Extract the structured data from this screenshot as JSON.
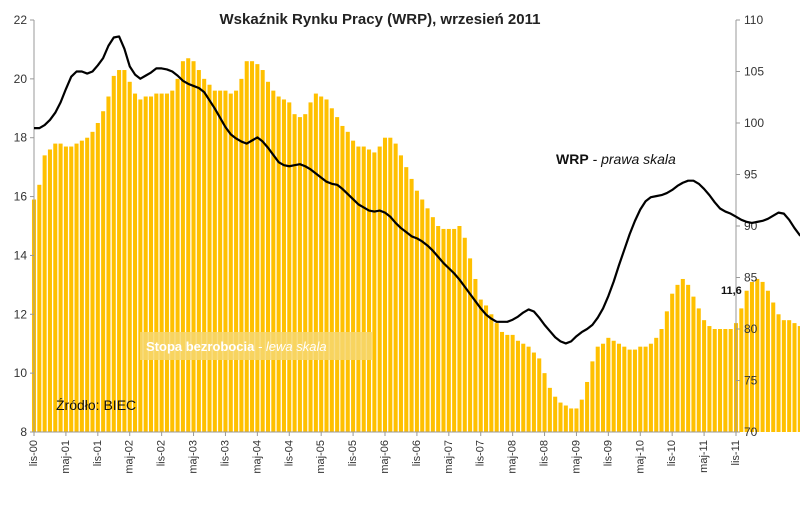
{
  "chart_data": {
    "type": "bar+line",
    "title": "Wskaźnik Rynku Pracy (WRP), wrzesień 2011",
    "left_axis": {
      "min": 8,
      "max": 22,
      "ticks": [
        "8",
        "10",
        "12",
        "14",
        "16",
        "18",
        "20",
        "22"
      ]
    },
    "right_axis": {
      "min": 70,
      "max": 110,
      "ticks": [
        "70",
        "75",
        "80",
        "85",
        "90",
        "95",
        "100",
        "105",
        "110"
      ]
    },
    "x_range": {
      "start": "2000-11",
      "end": "2011-11"
    },
    "x_ticks": [
      {
        "date": "2000-11",
        "label": "lis-00"
      },
      {
        "date": "2001-05",
        "label": "maj-01"
      },
      {
        "date": "2001-11",
        "label": "lis-01"
      },
      {
        "date": "2002-05",
        "label": "maj-02"
      },
      {
        "date": "2002-11",
        "label": "lis-02"
      },
      {
        "date": "2003-05",
        "label": "maj-03"
      },
      {
        "date": "2003-11",
        "label": "lis-03"
      },
      {
        "date": "2004-05",
        "label": "maj-04"
      },
      {
        "date": "2004-11",
        "label": "lis-04"
      },
      {
        "date": "2005-05",
        "label": "maj-05"
      },
      {
        "date": "2005-11",
        "label": "lis-05"
      },
      {
        "date": "2006-05",
        "label": "maj-06"
      },
      {
        "date": "2006-11",
        "label": "lis-06"
      },
      {
        "date": "2007-05",
        "label": "maj-07"
      },
      {
        "date": "2007-11",
        "label": "lis-07"
      },
      {
        "date": "2008-05",
        "label": "maj-08"
      },
      {
        "date": "2008-11",
        "label": "lis-08"
      },
      {
        "date": "2009-05",
        "label": "maj-09"
      },
      {
        "date": "2009-11",
        "label": "lis-09"
      },
      {
        "date": "2010-05",
        "label": "maj-10"
      },
      {
        "date": "2010-11",
        "label": "lis-10"
      },
      {
        "date": "2011-05",
        "label": "maj-11"
      },
      {
        "date": "2011-11",
        "label": "lis-11"
      }
    ],
    "bar_series": {
      "name": "Stopa bezrobocia",
      "axis": "left",
      "color": "#FFC000",
      "start": "2000-11",
      "values": [
        15.9,
        16.4,
        17.4,
        17.6,
        17.8,
        17.8,
        17.7,
        17.7,
        17.8,
        17.9,
        18.0,
        18.2,
        18.5,
        18.9,
        19.4,
        20.1,
        20.3,
        20.3,
        19.9,
        19.5,
        19.3,
        19.4,
        19.4,
        19.5,
        19.5,
        19.5,
        19.6,
        20.0,
        20.6,
        20.7,
        20.6,
        20.3,
        20.0,
        19.8,
        19.6,
        19.6,
        19.6,
        19.5,
        19.6,
        20.0,
        20.6,
        20.6,
        20.5,
        20.3,
        19.9,
        19.6,
        19.4,
        19.3,
        19.2,
        18.8,
        18.7,
        18.8,
        19.2,
        19.5,
        19.4,
        19.3,
        19.0,
        18.7,
        18.4,
        18.2,
        17.9,
        17.7,
        17.7,
        17.6,
        17.5,
        17.7,
        18.0,
        18.0,
        17.8,
        17.4,
        17.0,
        16.6,
        16.2,
        15.9,
        15.6,
        15.3,
        15.0,
        14.9,
        14.9,
        14.9,
        15.0,
        14.6,
        13.9,
        13.2,
        12.5,
        12.3,
        12.0,
        11.7,
        11.4,
        11.3,
        11.3,
        11.1,
        11.0,
        10.9,
        10.7,
        10.5,
        10.0,
        9.5,
        9.2,
        9.0,
        8.9,
        8.8,
        8.8,
        9.1,
        9.7,
        10.4,
        10.9,
        11.0,
        11.2,
        11.1,
        11.0,
        10.9,
        10.8,
        10.8,
        10.9,
        10.9,
        11.0,
        11.2,
        11.5,
        12.1,
        12.7,
        13.0,
        13.2,
        13.0,
        12.6,
        12.2,
        11.8,
        11.6,
        11.5,
        11.5,
        11.5,
        11.5,
        11.7,
        12.2,
        12.8,
        13.1,
        13.2,
        13.1,
        12.8,
        12.4,
        12.0,
        11.8,
        11.8,
        11.7,
        11.6
      ]
    },
    "line_series": {
      "name": "WRP",
      "axis": "right",
      "color": "#000000",
      "start": "2000-11",
      "values": [
        99.5,
        99.5,
        99.8,
        100.3,
        101.0,
        102.0,
        103.3,
        104.5,
        105.0,
        105.0,
        104.8,
        105.0,
        105.6,
        106.3,
        107.5,
        108.3,
        108.4,
        107.2,
        105.5,
        104.7,
        104.3,
        104.6,
        104.9,
        105.3,
        105.3,
        105.2,
        105.0,
        104.6,
        104.1,
        103.8,
        103.6,
        103.4,
        103.0,
        102.2,
        101.4,
        100.5,
        99.6,
        98.9,
        98.5,
        98.2,
        98.0,
        98.3,
        98.6,
        98.2,
        97.6,
        96.9,
        96.2,
        95.9,
        95.8,
        95.9,
        96.0,
        95.8,
        95.5,
        95.1,
        94.7,
        94.3,
        94.1,
        94.0,
        93.6,
        93.1,
        92.6,
        92.1,
        91.8,
        91.5,
        91.4,
        91.5,
        91.3,
        90.9,
        90.3,
        89.8,
        89.4,
        89.0,
        88.8,
        88.5,
        88.1,
        87.6,
        87.0,
        86.4,
        85.9,
        85.4,
        84.8,
        84.1,
        83.4,
        82.7,
        82.0,
        81.4,
        81.0,
        80.7,
        80.7,
        80.7,
        80.9,
        81.2,
        81.6,
        81.9,
        81.7,
        81.1,
        80.4,
        79.8,
        79.2,
        78.8,
        78.6,
        78.8,
        79.3,
        79.7,
        80.0,
        80.4,
        81.1,
        82.0,
        83.2,
        84.6,
        86.2,
        87.7,
        89.2,
        90.5,
        91.6,
        92.4,
        92.8,
        92.9,
        93.0,
        93.2,
        93.5,
        93.9,
        94.2,
        94.4,
        94.4,
        94.1,
        93.6,
        93.0,
        92.3,
        91.7,
        91.4,
        91.2,
        90.9,
        90.6,
        90.4,
        90.3,
        90.4,
        90.5,
        90.7,
        91.0,
        91.3,
        91.2,
        90.6,
        89.8,
        89.1,
        88.9,
        88.9
      ]
    },
    "annotations": {
      "wrp_bold": "WRP",
      "wrp_italic": " - prawa skala",
      "ub_bold": "Stopa bezrobocia",
      "ub_italic": " - lewa skala",
      "source": "Źródło: BIEC",
      "last_value": "11,6"
    },
    "grid": false
  }
}
